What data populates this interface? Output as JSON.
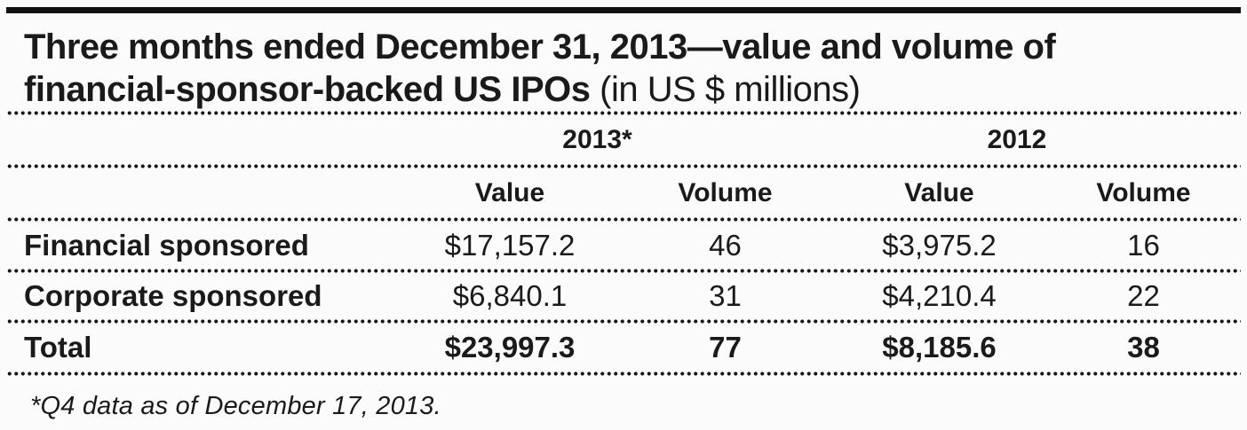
{
  "title": {
    "line1": "Three months ended December 31, 2013—value and volume of",
    "line2_bold": "financial-sponsor-backed US IPOs",
    "line2_regular": "(in US $ millions)"
  },
  "table": {
    "group_headers": [
      {
        "label": "2013*"
      },
      {
        "label": "2012"
      }
    ],
    "column_headers": [
      "Value",
      "Volume",
      "Value",
      "Volume"
    ],
    "rows": [
      {
        "label": "Financial sponsored",
        "values": [
          "$17,157.2",
          "46",
          "$3,975.2",
          "16"
        ]
      },
      {
        "label": "Corporate sponsored",
        "values": [
          "$6,840.1",
          "31",
          "$4,210.4",
          "22"
        ]
      },
      {
        "label": "Total",
        "values": [
          "$23,997.3",
          "77",
          "$8,185.6",
          "38"
        ]
      }
    ]
  },
  "footnote": "*Q4 data as of December 17, 2013.",
  "colors": {
    "text": "#1a1a1a",
    "background": "#fbfbfb",
    "rule": "#111111"
  },
  "chart_data": {
    "type": "table",
    "title": "Three months ended December 31, 2013—value and volume of financial-sponsor-backed US IPOs (in US $ millions)",
    "column_groups": [
      "2013*",
      "2012"
    ],
    "columns": [
      "Value 2013",
      "Volume 2013",
      "Value 2012",
      "Volume 2012"
    ],
    "rows": [
      {
        "label": "Financial sponsored",
        "value_2013": 17157.2,
        "volume_2013": 46,
        "value_2012": 3975.2,
        "volume_2012": 16
      },
      {
        "label": "Corporate sponsored",
        "value_2013": 6840.1,
        "volume_2013": 31,
        "value_2012": 4210.4,
        "volume_2012": 22
      },
      {
        "label": "Total",
        "value_2013": 23997.3,
        "volume_2013": 77,
        "value_2012": 8185.6,
        "volume_2012": 38
      }
    ],
    "footnote": "*Q4 data as of December 17, 2013."
  }
}
